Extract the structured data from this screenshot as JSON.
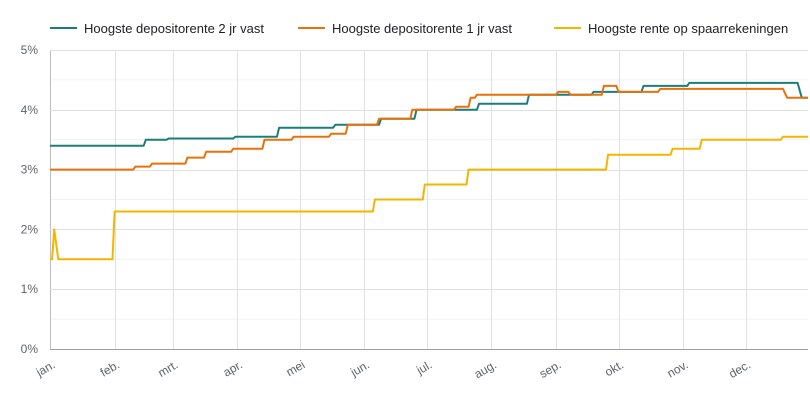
{
  "chart_data": {
    "type": "line",
    "title": "",
    "xlabel": "",
    "ylabel": "",
    "ylim": [
      0,
      5
    ],
    "y_ticks": [
      "0%",
      "1%",
      "2%",
      "3%",
      "4%",
      "5%"
    ],
    "x_tick_labels": [
      "jan.",
      "feb.",
      "mrt.",
      "apr.",
      "mei",
      "jun.",
      "jul.",
      "aug.",
      "sep.",
      "okt.",
      "nov.",
      "dec."
    ],
    "x_unit": "day of year",
    "grid": true,
    "legend_position": "top",
    "series": [
      {
        "name": "Hoogste depositorente 2 jr vast",
        "color": "#1a7f7a",
        "points": [
          [
            1,
            3.4
          ],
          [
            46,
            3.4
          ],
          [
            47,
            3.5
          ],
          [
            57,
            3.5
          ],
          [
            58,
            3.52
          ],
          [
            89,
            3.52
          ],
          [
            90,
            3.55
          ],
          [
            110,
            3.55
          ],
          [
            111,
            3.7
          ],
          [
            137,
            3.7
          ],
          [
            138,
            3.75
          ],
          [
            159,
            3.75
          ],
          [
            160,
            3.85
          ],
          [
            176,
            3.85
          ],
          [
            177,
            4.0
          ],
          [
            206,
            4.0
          ],
          [
            207,
            4.1
          ],
          [
            230,
            4.1
          ],
          [
            231,
            4.25
          ],
          [
            261,
            4.25
          ],
          [
            262,
            4.3
          ],
          [
            285,
            4.3
          ],
          [
            286,
            4.4
          ],
          [
            307,
            4.4
          ],
          [
            308,
            4.45
          ],
          [
            360,
            4.45
          ],
          [
            362,
            4.2
          ],
          [
            365,
            4.2
          ]
        ]
      },
      {
        "name": "Hoogste depositorente 1 jr vast",
        "color": "#e8710a",
        "points": [
          [
            1,
            3.0
          ],
          [
            41,
            3.0
          ],
          [
            42,
            3.05
          ],
          [
            49,
            3.05
          ],
          [
            50,
            3.1
          ],
          [
            60,
            3.1
          ],
          [
            66,
            3.1
          ],
          [
            67,
            3.2
          ],
          [
            75,
            3.2
          ],
          [
            76,
            3.3
          ],
          [
            88,
            3.3
          ],
          [
            89,
            3.35
          ],
          [
            103,
            3.35
          ],
          [
            104,
            3.5
          ],
          [
            117,
            3.5
          ],
          [
            118,
            3.55
          ],
          [
            135,
            3.55
          ],
          [
            136,
            3.6
          ],
          [
            143,
            3.6
          ],
          [
            144,
            3.75
          ],
          [
            158,
            3.75
          ],
          [
            159,
            3.85
          ],
          [
            174,
            3.85
          ],
          [
            175,
            4.0
          ],
          [
            195,
            4.0
          ],
          [
            196,
            4.05
          ],
          [
            202,
            4.05
          ],
          [
            203,
            4.2
          ],
          [
            205,
            4.2
          ],
          [
            206,
            4.25
          ],
          [
            244,
            4.25
          ],
          [
            245,
            4.3
          ],
          [
            250,
            4.3
          ],
          [
            251,
            4.25
          ],
          [
            266,
            4.25
          ],
          [
            267,
            4.4
          ],
          [
            273,
            4.4
          ],
          [
            274,
            4.3
          ],
          [
            293,
            4.3
          ],
          [
            294,
            4.35
          ],
          [
            353,
            4.35
          ],
          [
            355,
            4.2
          ],
          [
            365,
            4.2
          ]
        ]
      },
      {
        "name": "Hoogste rente op spaarrekeningen",
        "color": "#f4b400",
        "points": [
          [
            1,
            1.5
          ],
          [
            2,
            1.5
          ],
          [
            3,
            2.0
          ],
          [
            5,
            1.5
          ],
          [
            31,
            1.5
          ],
          [
            32,
            2.3
          ],
          [
            156,
            2.3
          ],
          [
            157,
            2.5
          ],
          [
            180,
            2.5
          ],
          [
            181,
            2.75
          ],
          [
            201,
            2.75
          ],
          [
            202,
            3.0
          ],
          [
            268,
            3.0
          ],
          [
            269,
            3.25
          ],
          [
            299,
            3.25
          ],
          [
            300,
            3.35
          ],
          [
            313,
            3.35
          ],
          [
            314,
            3.5
          ],
          [
            352,
            3.5
          ],
          [
            353,
            3.55
          ],
          [
            365,
            3.55
          ]
        ]
      }
    ]
  }
}
